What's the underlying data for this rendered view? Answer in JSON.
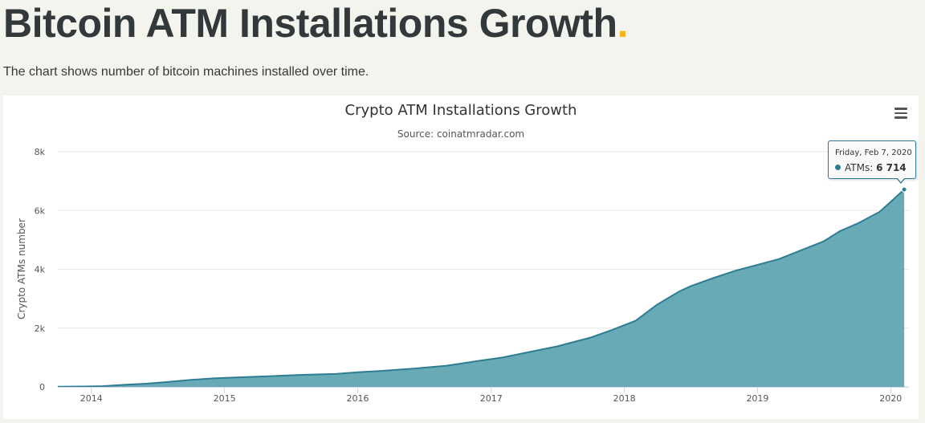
{
  "page": {
    "title": "Bitcoin ATM Installations Growth",
    "title_dot": ".",
    "subtitle": "The chart shows number of bitcoin machines installed over time."
  },
  "colors": {
    "accent": "#f2b619",
    "area_fill": "#4e9ba9",
    "area_line": "#2f7d92",
    "text": "#33393b"
  },
  "menu": {
    "icon": "hamburger-menu-icon"
  },
  "tooltip": {
    "date": "Friday, Feb 7, 2020",
    "series_label": "ATMs: ",
    "value": "6 714"
  },
  "chart_data": {
    "type": "area",
    "title": "Crypto ATM Installations Growth",
    "subtitle": "Source: coinatmradar.com",
    "xlabel": "",
    "ylabel": "Crypto ATMs number",
    "ylim": [
      0,
      8000
    ],
    "y_ticks": [
      0,
      2000,
      4000,
      6000,
      8000
    ],
    "y_tick_labels": [
      "0",
      "2k",
      "4k",
      "6k",
      "8k"
    ],
    "x_ticks": [
      "2014",
      "2015",
      "2016",
      "2017",
      "2018",
      "2019",
      "2020"
    ],
    "grid": true,
    "legend": "none",
    "series": [
      {
        "name": "ATMs",
        "points": [
          [
            "2013-10-01",
            5
          ],
          [
            "2013-12-15",
            15
          ],
          [
            "2014-02-01",
            25
          ],
          [
            "2014-04-01",
            70
          ],
          [
            "2014-06-01",
            110
          ],
          [
            "2014-08-01",
            170
          ],
          [
            "2014-10-01",
            240
          ],
          [
            "2014-12-01",
            290
          ],
          [
            "2015-02-01",
            320
          ],
          [
            "2015-05-01",
            360
          ],
          [
            "2015-08-01",
            410
          ],
          [
            "2015-11-01",
            440
          ],
          [
            "2016-01-01",
            500
          ],
          [
            "2016-03-01",
            540
          ],
          [
            "2016-06-01",
            620
          ],
          [
            "2016-09-01",
            720
          ],
          [
            "2016-12-01",
            890
          ],
          [
            "2017-02-01",
            1000
          ],
          [
            "2017-04-01",
            1150
          ],
          [
            "2017-07-01",
            1380
          ],
          [
            "2017-10-01",
            1680
          ],
          [
            "2017-12-01",
            1950
          ],
          [
            "2018-02-01",
            2250
          ],
          [
            "2018-04-01",
            2800
          ],
          [
            "2018-06-01",
            3250
          ],
          [
            "2018-07-01",
            3420
          ],
          [
            "2018-09-01",
            3700
          ],
          [
            "2018-11-01",
            3950
          ],
          [
            "2019-01-01",
            4150
          ],
          [
            "2019-03-01",
            4350
          ],
          [
            "2019-05-01",
            4650
          ],
          [
            "2019-07-01",
            4950
          ],
          [
            "2019-08-15",
            5300
          ],
          [
            "2019-10-01",
            5550
          ],
          [
            "2019-12-01",
            5950
          ],
          [
            "2020-01-15",
            6450
          ],
          [
            "2020-02-07",
            6714
          ]
        ]
      }
    ],
    "tooltip_point": [
      "2020-02-07",
      6714
    ]
  }
}
